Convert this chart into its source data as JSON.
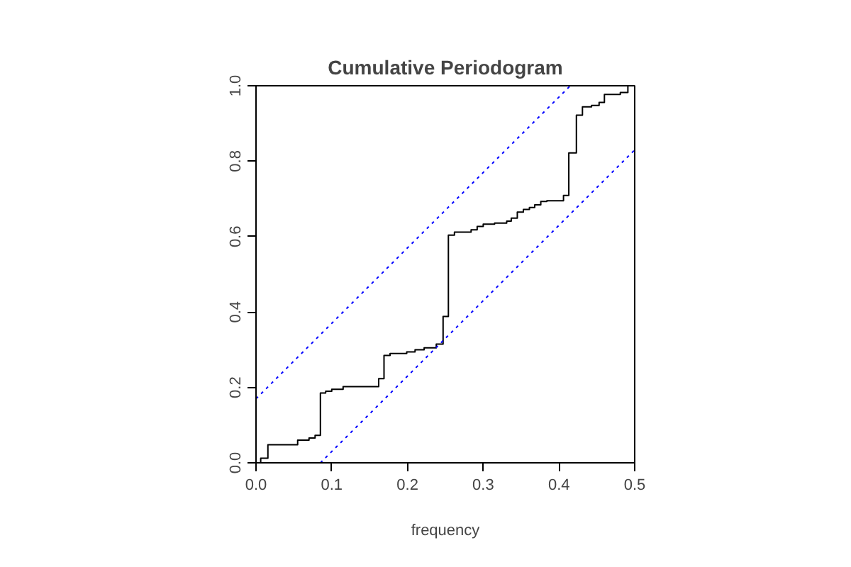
{
  "chart_data": {
    "type": "step",
    "title": "Cumulative Periodogram",
    "xlabel": "frequency",
    "xlim": [
      0,
      0.5
    ],
    "ylim": [
      0,
      1
    ],
    "xticks": [
      {
        "value": 0,
        "label": "0.0"
      },
      0.1,
      0.2,
      0.3,
      0.4,
      0.5
    ],
    "yticks": [
      {
        "value": 0,
        "label": "0.0"
      },
      0.2,
      0.4,
      0.6,
      0.8,
      {
        "value": 1,
        "label": "1.0"
      }
    ],
    "grid": false,
    "series": [
      {
        "color": "#000000",
        "line_style": "solid",
        "x": [
          0,
          0.0062,
          0.0157,
          0.055,
          0.07,
          0.078,
          0.085,
          0.092,
          0.1,
          0.115,
          0.162,
          0.169,
          0.177,
          0.199,
          0.21,
          0.222,
          0.238,
          0.247,
          0.254,
          0.262,
          0.284,
          0.292,
          0.3,
          0.315,
          0.331,
          0.337,
          0.345,
          0.353,
          0.361,
          0.368,
          0.376,
          0.384,
          0.406,
          0.413,
          0.423,
          0.431,
          0.443,
          0.453,
          0.46,
          0.481,
          0.491
        ],
        "values": [
          0,
          0.012,
          0.048,
          0.06,
          0.066,
          0.073,
          0.185,
          0.19,
          0.195,
          0.202,
          0.223,
          0.285,
          0.29,
          0.294,
          0.3,
          0.305,
          0.315,
          0.388,
          0.604,
          0.612,
          0.618,
          0.627,
          0.633,
          0.636,
          0.641,
          0.649,
          0.665,
          0.672,
          0.677,
          0.684,
          0.693,
          0.695,
          0.709,
          0.822,
          0.922,
          0.944,
          0.948,
          0.956,
          0.977,
          0.982,
          1.0
        ]
      },
      {
        "type": "line",
        "color": "#0000ff",
        "line_style": "dotted",
        "x": [
          0,
          0.415
        ],
        "values": [
          0.17,
          1.0
        ]
      },
      {
        "type": "line",
        "color": "#0000ff",
        "line_style": "dotted",
        "x": [
          0.085,
          0.5
        ],
        "values": [
          0,
          0.83
        ]
      }
    ]
  }
}
